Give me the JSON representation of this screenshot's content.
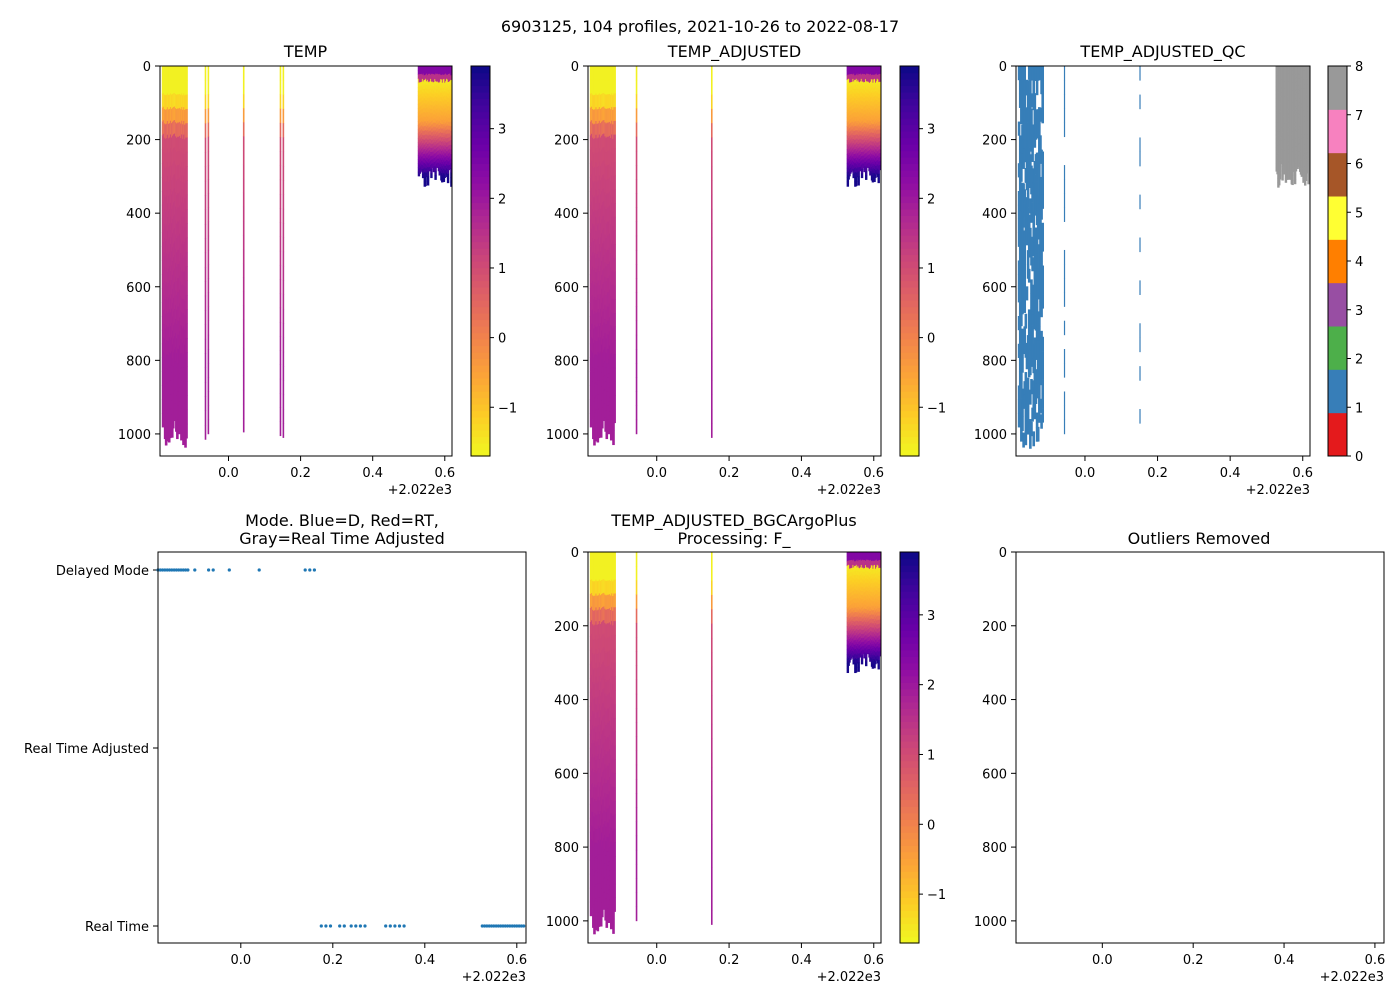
{
  "suptitle": "6903125, 104 profiles, 2021-10-26 to 2022-08-17",
  "colors": {
    "plasma": [
      "#0d0887",
      "#41049d",
      "#6a00a8",
      "#8f0da4",
      "#b12a90",
      "#cc4778",
      "#e16462",
      "#f2844b",
      "#fca636",
      "#fcce25",
      "#f0f921"
    ],
    "qc": [
      "#e41a1c",
      "#377eb8",
      "#4daf4a",
      "#984ea3",
      "#ff7f00",
      "#ffff33",
      "#a65628",
      "#f781bf",
      "#999999"
    ],
    "mode_points": "#1f77b4"
  },
  "chart_data": [
    {
      "id": "temp",
      "type": "heatmap",
      "title": "TEMP",
      "xlim": [
        -0.19,
        0.62
      ],
      "ylim": [
        1060,
        0
      ],
      "xticks": [
        "0.0",
        "0.2",
        "0.4",
        "0.6"
      ],
      "x_offset_label": "+2.022e3",
      "yticks": [
        "0",
        "200",
        "400",
        "600",
        "800",
        "1000"
      ],
      "colorbar": {
        "range": [
          -1.7,
          3.9
        ],
        "ticks": [
          "−1",
          "0",
          "1",
          "2",
          "3"
        ],
        "tick_values": [
          -1,
          0,
          1,
          2,
          3
        ]
      },
      "profiles_left": {
        "x_range": [
          -0.185,
          -0.12
        ],
        "count": 24,
        "max_depth": 1040
      },
      "profiles_sparse": [
        {
          "x": -0.066,
          "depth": 1015
        },
        {
          "x": -0.058,
          "depth": 1000
        },
        {
          "x": 0.04,
          "depth": 995
        },
        {
          "x": 0.142,
          "depth": 1005
        },
        {
          "x": 0.15,
          "depth": 1010
        }
      ],
      "profiles_right": {
        "x_range": [
          0.525,
          0.615
        ],
        "count": 40,
        "max_depth": 330
      }
    },
    {
      "id": "temp_adj",
      "type": "heatmap",
      "title": "TEMP_ADJUSTED",
      "xlim": [
        -0.19,
        0.62
      ],
      "ylim": [
        1060,
        0
      ],
      "xticks": [
        "0.0",
        "0.2",
        "0.4",
        "0.6"
      ],
      "x_offset_label": "+2.022e3",
      "yticks": [
        "0",
        "200",
        "400",
        "600",
        "800",
        "1000"
      ],
      "colorbar": {
        "range": [
          -1.7,
          3.9
        ],
        "ticks": [
          "−1",
          "0",
          "1",
          "2",
          "3"
        ],
        "tick_values": [
          -1,
          0,
          1,
          2,
          3
        ]
      },
      "profiles_left": {
        "x_range": [
          -0.185,
          -0.12
        ],
        "count": 22,
        "max_depth": 1040
      },
      "profiles_sparse": [
        {
          "x": -0.058,
          "depth": 1000
        },
        {
          "x": 0.15,
          "depth": 1010
        }
      ],
      "profiles_right": {
        "x_range": [
          0.525,
          0.615
        ],
        "count": 40,
        "max_depth": 330
      }
    },
    {
      "id": "temp_adj_qc",
      "type": "heatmap",
      "title": "TEMP_ADJUSTED_QC",
      "xlim": [
        -0.19,
        0.62
      ],
      "ylim": [
        1060,
        0
      ],
      "xticks": [
        "0.0",
        "0.2",
        "0.4",
        "0.6"
      ],
      "x_offset_label": "+2.022e3",
      "yticks": [
        "0",
        "200",
        "400",
        "600",
        "800",
        "1000"
      ],
      "colorbar": {
        "range": [
          0,
          8
        ],
        "ticks": [
          "0",
          "1",
          "2",
          "3",
          "4",
          "5",
          "6",
          "7",
          "8"
        ],
        "tick_values": [
          0,
          1,
          2,
          3,
          4,
          5,
          6,
          7,
          8
        ]
      },
      "qc_flags": {
        "left": 1,
        "right": 8
      },
      "profiles_left": {
        "x_range": [
          -0.185,
          -0.12
        ],
        "count": 22,
        "max_depth": 1040
      },
      "profiles_sparse": [
        {
          "x": -0.058,
          "depth": 1000
        },
        {
          "x": 0.15,
          "depth": 1010
        }
      ],
      "profiles_right": {
        "x_range": [
          0.525,
          0.615
        ],
        "count": 40,
        "max_depth": 330
      }
    },
    {
      "id": "mode",
      "type": "scatter",
      "title_lines": [
        "Mode. Blue=D, Red=RT,",
        "Gray=Real Time Adjusted"
      ],
      "xlim": [
        -0.18,
        0.62
      ],
      "xticks": [
        "0.0",
        "0.2",
        "0.4",
        "0.6"
      ],
      "x_offset_label": "+2.022e3",
      "categories": [
        "Delayed Mode",
        "Real Time Adjusted",
        "Real Time"
      ],
      "delayed_x": [
        -0.18,
        -0.175,
        -0.17,
        -0.165,
        -0.16,
        -0.155,
        -0.15,
        -0.145,
        -0.14,
        -0.135,
        -0.13,
        -0.125,
        -0.12,
        -0.115,
        -0.1,
        -0.07,
        -0.06,
        -0.025,
        0.04,
        0.14,
        0.15,
        0.16
      ],
      "realtime_x": [
        0.175,
        0.185,
        0.195,
        0.215,
        0.225,
        0.24,
        0.25,
        0.26,
        0.27,
        0.315,
        0.325,
        0.335,
        0.345,
        0.355,
        0.525,
        0.53,
        0.535,
        0.54,
        0.545,
        0.55,
        0.555,
        0.56,
        0.565,
        0.57,
        0.575,
        0.58,
        0.585,
        0.59,
        0.595,
        0.6,
        0.605,
        0.61,
        0.615
      ]
    },
    {
      "id": "bgc",
      "type": "heatmap",
      "title_lines": [
        "TEMP_ADJUSTED_BGCArgoPlus",
        "Processing: F_"
      ],
      "xlim": [
        -0.19,
        0.62
      ],
      "ylim": [
        1060,
        0
      ],
      "xticks": [
        "0.0",
        "0.2",
        "0.4",
        "0.6"
      ],
      "x_offset_label": "+2.022e3",
      "yticks": [
        "0",
        "200",
        "400",
        "600",
        "800",
        "1000"
      ],
      "colorbar": {
        "range": [
          -1.7,
          3.9
        ],
        "ticks": [
          "−1",
          "0",
          "1",
          "2",
          "3"
        ],
        "tick_values": [
          -1,
          0,
          1,
          2,
          3
        ]
      },
      "profiles_left": {
        "x_range": [
          -0.185,
          -0.12
        ],
        "count": 22,
        "max_depth": 1045
      },
      "profiles_sparse": [
        {
          "x": -0.058,
          "depth": 1000
        },
        {
          "x": 0.15,
          "depth": 1010
        }
      ],
      "profiles_right": {
        "x_range": [
          0.525,
          0.615
        ],
        "count": 40,
        "max_depth": 330
      }
    },
    {
      "id": "outliers",
      "type": "scatter",
      "title": "Outliers Removed",
      "xlim": [
        -0.19,
        0.62
      ],
      "ylim": [
        1060,
        0
      ],
      "xticks": [
        "0.0",
        "0.2",
        "0.4",
        "0.6"
      ],
      "x_offset_label": "+2.022e3",
      "yticks": [
        "0",
        "200",
        "400",
        "600",
        "800",
        "1000"
      ],
      "points": []
    }
  ]
}
